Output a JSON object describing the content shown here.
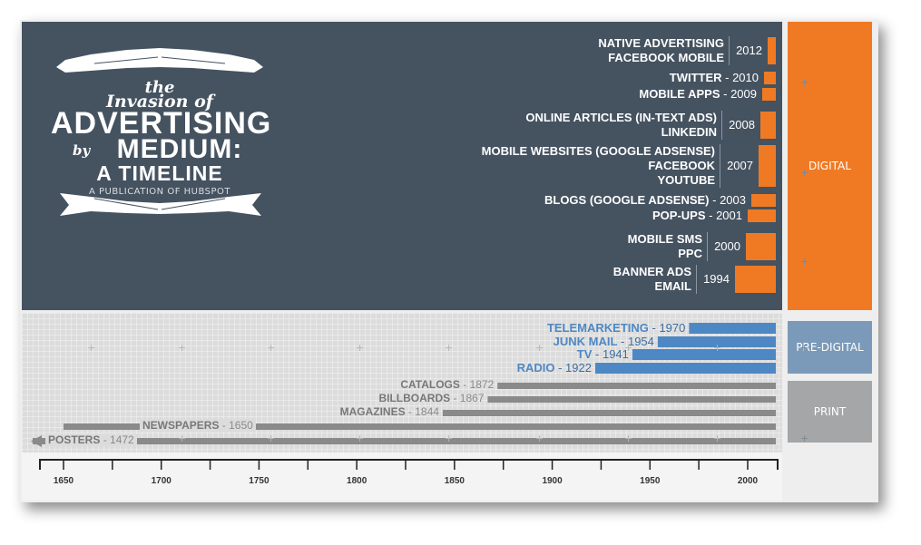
{
  "title": {
    "the": "the",
    "invasion_of": "Invasion of",
    "advertising": "ADVERTISING",
    "by": "by",
    "medium": "MEDIUM:",
    "a_timeline": "A TIMELINE",
    "publication": "A PUBLICATION OF HUBSPOT"
  },
  "categories": {
    "digital": "DIGITAL",
    "pre_digital": "PRE-DIGITAL",
    "print": "PRINT"
  },
  "colors": {
    "digital": "#f07a24",
    "pre_digital": "#4e88c4",
    "print": "#8a8a8a",
    "dark_panel": "#455260"
  },
  "chart_data": [
    {
      "type": "bar",
      "group": "Digital",
      "entries": [
        {
          "media": [
            "NATIVE ADVERTISING",
            "FACEBOOK MOBILE"
          ],
          "year": 2012,
          "label_year": "2012"
        },
        {
          "media": [
            "TWITTER"
          ],
          "year": 2010,
          "label_year": "2010",
          "inline": true
        },
        {
          "media": [
            "MOBILE APPS"
          ],
          "year": 2009,
          "label_year": "2009",
          "inline": true
        },
        {
          "media": [
            "ONLINE ARTICLES (IN-TEXT ADS)",
            "LINKEDIN"
          ],
          "year": 2008,
          "label_year": "2008"
        },
        {
          "media": [
            "MOBILE WEBSITES (GOOGLE ADSENSE)",
            "FACEBOOK",
            "YOUTUBE"
          ],
          "year": 2007,
          "label_year": "2007"
        },
        {
          "media": [
            "BLOGS (GOOGLE ADSENSE)"
          ],
          "year": 2003,
          "label_year": "2003",
          "inline": true
        },
        {
          "media": [
            "POP-UPS"
          ],
          "year": 2001,
          "label_year": "2001",
          "inline": true
        },
        {
          "media": [
            "MOBILE SMS",
            "PPC"
          ],
          "year": 2000,
          "label_year": "2000"
        },
        {
          "media": [
            "BANNER ADS",
            "EMAIL"
          ],
          "year": 1994,
          "label_year": "1994"
        }
      ]
    },
    {
      "type": "bar",
      "group": "Pre-digital & Print",
      "xlim": [
        1640,
        2014
      ],
      "xticks": [
        1650,
        1700,
        1750,
        1800,
        1850,
        1900,
        1950,
        2000
      ],
      "series": [
        {
          "name": "TELEMARKETING",
          "start": 1970,
          "category": "pre_digital"
        },
        {
          "name": "JUNK MAIL",
          "start": 1954,
          "category": "pre_digital"
        },
        {
          "name": "TV",
          "start": 1941,
          "category": "pre_digital"
        },
        {
          "name": "RADIO",
          "start": 1922,
          "category": "pre_digital"
        },
        {
          "name": "CATALOGS",
          "start": 1872,
          "category": "print"
        },
        {
          "name": "BILLBOARDS",
          "start": 1867,
          "category": "print"
        },
        {
          "name": "MAGAZINES",
          "start": 1844,
          "category": "print"
        },
        {
          "name": "NEWSPAPERS",
          "start": 1650,
          "category": "print"
        },
        {
          "name": "POSTERS",
          "start": 1472,
          "category": "print",
          "extends_off_axis": true
        }
      ]
    }
  ]
}
